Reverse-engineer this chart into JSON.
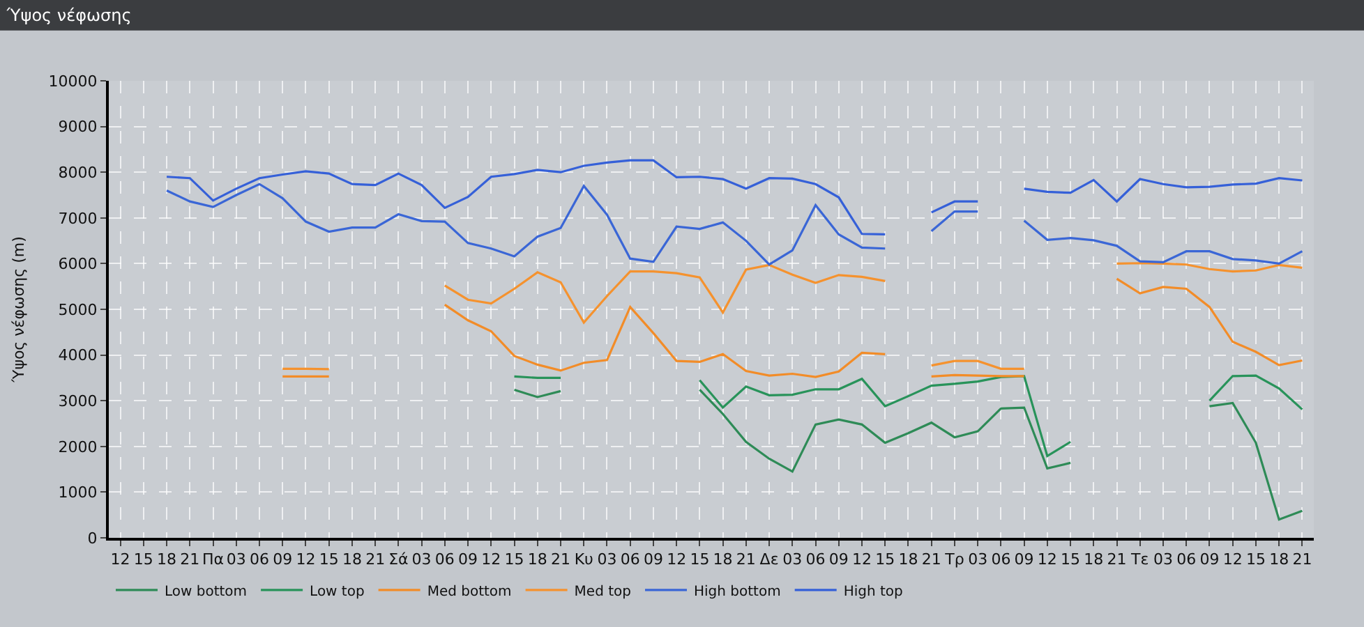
{
  "chart_data": {
    "type": "line",
    "title": "Ύψος νέφωσης",
    "ylabel": "Ύψος νέφωσης (m)",
    "categories": [
      "12",
      "15",
      "18",
      "21",
      "Πα",
      "03",
      "06",
      "09",
      "12",
      "15",
      "18",
      "21",
      "Σά",
      "03",
      "06",
      "09",
      "12",
      "15",
      "18",
      "21",
      "Κυ",
      "03",
      "06",
      "09",
      "12",
      "15",
      "18",
      "21",
      "Δε",
      "03",
      "06",
      "09",
      "12",
      "15",
      "18",
      "21",
      "Τρ",
      "03",
      "06",
      "09",
      "12",
      "15",
      "18",
      "21",
      "Τε",
      "03",
      "06",
      "09",
      "12",
      "15",
      "18",
      "21"
    ],
    "ylim": [
      0,
      10000
    ],
    "yticks": [
      0,
      1000,
      2000,
      3000,
      4000,
      5000,
      6000,
      7000,
      8000,
      9000,
      10000
    ],
    "grid": true,
    "legend": "bottom left",
    "marker": "none",
    "line_style": "solid",
    "series": [
      {
        "name": "Low bottom",
        "color": "#2e8b57",
        "values": [
          null,
          null,
          null,
          null,
          null,
          null,
          null,
          null,
          null,
          null,
          null,
          null,
          null,
          null,
          null,
          null,
          null,
          3240,
          3080,
          3210,
          null,
          null,
          null,
          null,
          null,
          3240,
          2710,
          2100,
          1730,
          1450,
          2480,
          2590,
          2480,
          2080,
          2290,
          2520,
          2200,
          2330,
          2830,
          2850,
          1520,
          1640,
          null,
          null,
          null,
          null,
          null,
          2880,
          2950,
          2080,
          400,
          590
        ]
      },
      {
        "name": "Low top",
        "color": "#28935a",
        "values": [
          null,
          null,
          null,
          null,
          null,
          null,
          null,
          null,
          null,
          null,
          null,
          null,
          null,
          null,
          null,
          null,
          null,
          3530,
          3500,
          3500,
          null,
          null,
          null,
          null,
          null,
          3450,
          2850,
          3310,
          3120,
          3130,
          3250,
          3250,
          3480,
          2880,
          3100,
          3330,
          3370,
          3420,
          3520,
          3540,
          1790,
          2100,
          null,
          null,
          null,
          null,
          null,
          3000,
          3540,
          3550,
          3270,
          2810
        ]
      },
      {
        "name": "Med bottom",
        "color": "#f28c28",
        "values": [
          null,
          null,
          null,
          null,
          null,
          null,
          null,
          3530,
          3530,
          3530,
          null,
          null,
          null,
          null,
          5100,
          4760,
          4520,
          3980,
          3790,
          3660,
          3830,
          3890,
          5050,
          4480,
          3870,
          3850,
          4020,
          3650,
          3550,
          3590,
          3520,
          3640,
          4050,
          4020,
          null,
          3530,
          3560,
          3550,
          3540,
          3540,
          null,
          null,
          null,
          5670,
          5350,
          5490,
          5450,
          5050,
          4290,
          4070,
          3780,
          3880
        ]
      },
      {
        "name": "Med top",
        "color": "#f5922e",
        "values": [
          null,
          null,
          null,
          null,
          null,
          null,
          null,
          3700,
          3700,
          3690,
          null,
          null,
          null,
          null,
          5520,
          5210,
          5130,
          5450,
          5810,
          5590,
          4710,
          5290,
          5830,
          5830,
          5790,
          5700,
          4930,
          5870,
          5970,
          5760,
          5580,
          5750,
          5710,
          5620,
          null,
          3770,
          3870,
          3870,
          3700,
          3700,
          null,
          null,
          null,
          6000,
          6010,
          6000,
          5980,
          5880,
          5830,
          5850,
          5970,
          5910
        ]
      },
      {
        "name": "High bottom",
        "color": "#3a66d6",
        "values": [
          null,
          null,
          7600,
          7360,
          7240,
          7500,
          7740,
          7430,
          6920,
          6700,
          6790,
          6790,
          7080,
          6930,
          6920,
          6450,
          6330,
          6160,
          6590,
          6780,
          7700,
          7070,
          6110,
          6040,
          6810,
          6760,
          6900,
          6500,
          5980,
          6290,
          7280,
          6640,
          6350,
          6330,
          null,
          6710,
          7140,
          7140,
          null,
          6940,
          6520,
          6560,
          6510,
          6390,
          6050,
          6030,
          6270,
          6270,
          6100,
          6070,
          6000,
          6270
        ]
      },
      {
        "name": "High top",
        "color": "#3560d8",
        "values": [
          null,
          null,
          7900,
          7870,
          7380,
          7640,
          7870,
          7950,
          8020,
          7970,
          7740,
          7720,
          7970,
          7720,
          7220,
          7460,
          7900,
          7960,
          8050,
          8000,
          8140,
          8210,
          8260,
          8260,
          7890,
          7900,
          7850,
          7640,
          7870,
          7860,
          7740,
          7450,
          6650,
          6640,
          null,
          7120,
          7360,
          7360,
          null,
          7640,
          7570,
          7550,
          7830,
          7360,
          7850,
          7740,
          7670,
          7680,
          7730,
          7750,
          7870,
          7820
        ]
      }
    ]
  }
}
